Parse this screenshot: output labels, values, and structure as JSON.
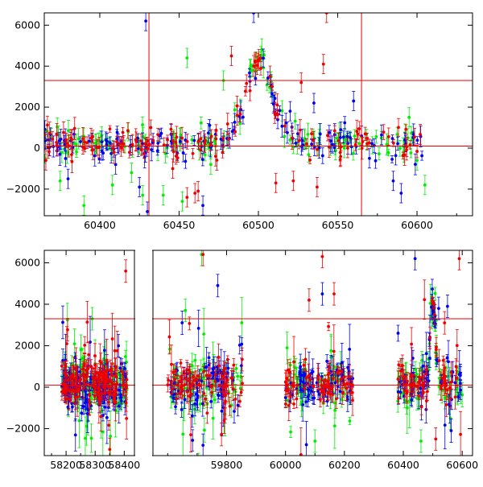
{
  "colors": {
    "blue": "#0000ee",
    "green": "#00ee00",
    "red": "#ee0000",
    "hline": "#ee0000",
    "frame": "#000000"
  },
  "chart_data": [
    {
      "type": "scatter",
      "error_bars": true,
      "xlim": [
        60365,
        60635
      ],
      "ylim": [
        -3300,
        6600
      ],
      "xticks": [
        60400,
        60450,
        60500,
        60550,
        60600
      ],
      "xtick_labels": [
        "60400",
        "60450",
        "60500",
        "60550",
        "60600"
      ],
      "yticks": [
        -2000,
        0,
        2000,
        4000,
        6000
      ],
      "ytick_labels": [
        "−2000",
        "0",
        "2000",
        "4000",
        "6000"
      ],
      "hlines": [
        100,
        3300
      ],
      "vlines": [
        60431,
        60565
      ],
      "series": [
        {
          "color": "blue",
          "x_range": [
            60365,
            60605
          ],
          "points": [
            [
              60380,
              -1500
            ],
            [
              60410,
              -800
            ],
            [
              60425,
              -1900
            ],
            [
              60429,
              6200
            ],
            [
              60430,
              -3100
            ],
            [
              60465,
              -2800
            ],
            [
              60497,
              6600
            ],
            [
              60520,
              1800
            ],
            [
              60535,
              2200
            ],
            [
              60560,
              2300
            ],
            [
              60565,
              600
            ],
            [
              60570,
              -500
            ],
            [
              60585,
              -1600
            ],
            [
              60590,
              -2200
            ]
          ]
        },
        {
          "color": "green",
          "x_range": [
            60365,
            60605
          ],
          "points": [
            [
              60375,
              -1600
            ],
            [
              60390,
              -2800
            ],
            [
              60408,
              -1800
            ],
            [
              60420,
              -1200
            ],
            [
              60427,
              -2300
            ],
            [
              60440,
              -2300
            ],
            [
              60452,
              -2600
            ],
            [
              60455,
              4400
            ],
            [
              60470,
              -800
            ],
            [
              60478,
              3300
            ],
            [
              60595,
              1500
            ],
            [
              60600,
              -600
            ],
            [
              60605,
              -1800
            ]
          ]
        },
        {
          "color": "red",
          "x_range": [
            60365,
            60605
          ],
          "points": [
            [
              60366,
              -600
            ],
            [
              60446,
              -1000
            ],
            [
              60455,
              -2400
            ],
            [
              60460,
              -2200
            ],
            [
              60462,
              -2100
            ],
            [
              60473,
              -400
            ],
            [
              60483,
              4500
            ],
            [
              60498,
              4200
            ],
            [
              60511,
              -1700
            ],
            [
              60522,
              -1600
            ],
            [
              60527,
              3200
            ],
            [
              60537,
              -1900
            ],
            [
              60541,
              4100
            ],
            [
              60543,
              6600
            ]
          ]
        }
      ],
      "bump": {
        "center": 60500,
        "width": 12,
        "height": 4000
      }
    },
    {
      "type": "scatter",
      "error_bars": true,
      "broken_axis": true,
      "segments": [
        {
          "xlim": [
            58125,
            58435
          ],
          "xticks": [
            58200,
            58300,
            58400
          ],
          "xtick_labels": [
            "58200",
            "58300",
            "58400"
          ],
          "data_range": [
            58185,
            58410
          ]
        },
        {
          "xlim": [
            59550,
            60635
          ],
          "xticks": [
            59800,
            60000,
            60200,
            60400,
            60600
          ],
          "xtick_labels": [
            "59800",
            "60000",
            "60200",
            "60400",
            "60600"
          ],
          "data_ranges": [
            [
              59600,
              59855
            ],
            [
              60000,
              60230
            ],
            [
              60380,
              60600
            ]
          ]
        }
      ],
      "ylim": [
        -3300,
        6600
      ],
      "yticks": [
        -2000,
        0,
        2000,
        4000,
        6000
      ],
      "ytick_labels": [
        "−2000",
        "0",
        "2000",
        "4000",
        "6000"
      ],
      "hlines": [
        100,
        3300
      ],
      "series": [
        {
          "color": "blue",
          "points": [
            [
              58380,
              2000
            ],
            [
              59770,
              4900
            ],
            [
              59720,
              -2800
            ],
            [
              60125,
              4500
            ],
            [
              60440,
              6200
            ],
            [
              60520,
              3800
            ],
            [
              60550,
              3900
            ]
          ]
        },
        {
          "color": "green",
          "points": [
            [
              58290,
              3300
            ],
            [
              59660,
              3700
            ],
            [
              59715,
              6400
            ],
            [
              60100,
              -2600
            ],
            [
              60460,
              -2600
            ],
            [
              60560,
              -1500
            ],
            [
              60500,
              3500
            ]
          ]
        },
        {
          "color": "red",
          "points": [
            [
              58405,
              5600
            ],
            [
              58350,
              -3000
            ],
            [
              59720,
              6400
            ],
            [
              60080,
              4200
            ],
            [
              60125,
              6300
            ],
            [
              60165,
              4500
            ],
            [
              60540,
              3100
            ],
            [
              60590,
              6200
            ],
            [
              60510,
              -2500
            ]
          ]
        }
      ],
      "bump": {
        "center": 60500,
        "width": 12,
        "height": 4000
      }
    }
  ]
}
